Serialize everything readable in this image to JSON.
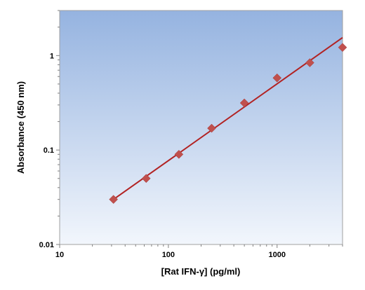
{
  "chart_data": {
    "type": "scatter",
    "title": "",
    "xlabel": "[Rat IFN-γ] (pg/ml)",
    "ylabel": "Absorbance (450 nm)",
    "x_scale": "log",
    "y_scale": "log",
    "xlim": [
      10,
      4000
    ],
    "ylim": [
      0.01,
      3
    ],
    "x_ticks": [
      {
        "value": 10,
        "label": "10"
      },
      {
        "value": 100,
        "label": "100"
      },
      {
        "value": 1000,
        "label": "1000"
      }
    ],
    "y_ticks": [
      {
        "value": 0.01,
        "label": "0.01"
      },
      {
        "value": 0.1,
        "label": "0.1"
      },
      {
        "value": 1,
        "label": "1"
      }
    ],
    "series": [
      {
        "x": [
          31.25,
          62.5,
          125,
          250,
          500,
          1000,
          2000,
          4000
        ],
        "y": [
          0.03,
          0.05,
          0.09,
          0.17,
          0.315,
          0.58,
          0.84,
          1.22
        ],
        "marker": "diamond",
        "marker_color": "#c0504d"
      }
    ],
    "fit_line": {
      "x": [
        31.25,
        4000
      ],
      "y": [
        0.03,
        1.55
      ],
      "color": "#b22222"
    },
    "grid": false,
    "legend": "none",
    "plot_background": {
      "top": "#95b3e0",
      "bottom": "#f2f6fc"
    }
  }
}
